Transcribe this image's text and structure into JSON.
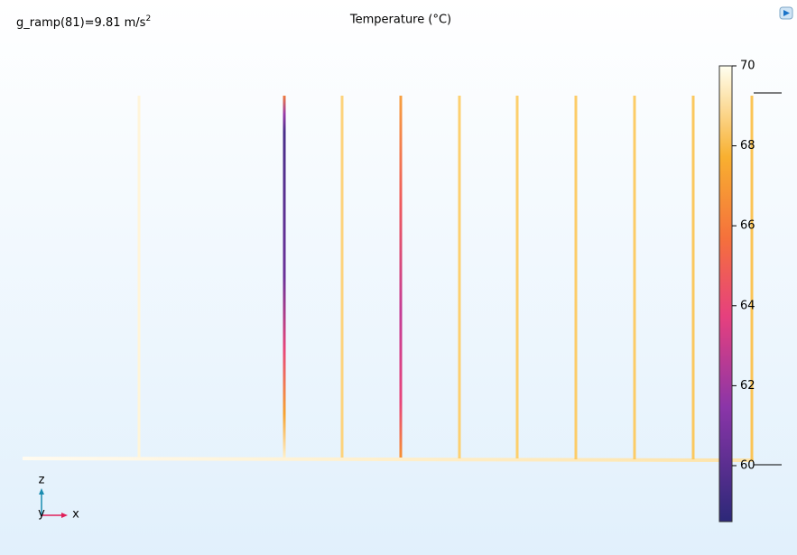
{
  "plot": {
    "annotation": "g_ramp(81)=9.81 m/s",
    "annotation_superscript": "2",
    "title": "Temperature (°C)"
  },
  "colorbar": {
    "lim": [
      58.6,
      70
    ],
    "ticks": [
      60,
      62,
      64,
      66,
      68,
      70
    ]
  },
  "axes_triad": {
    "z": "z",
    "y": "y",
    "x": "x"
  }
}
